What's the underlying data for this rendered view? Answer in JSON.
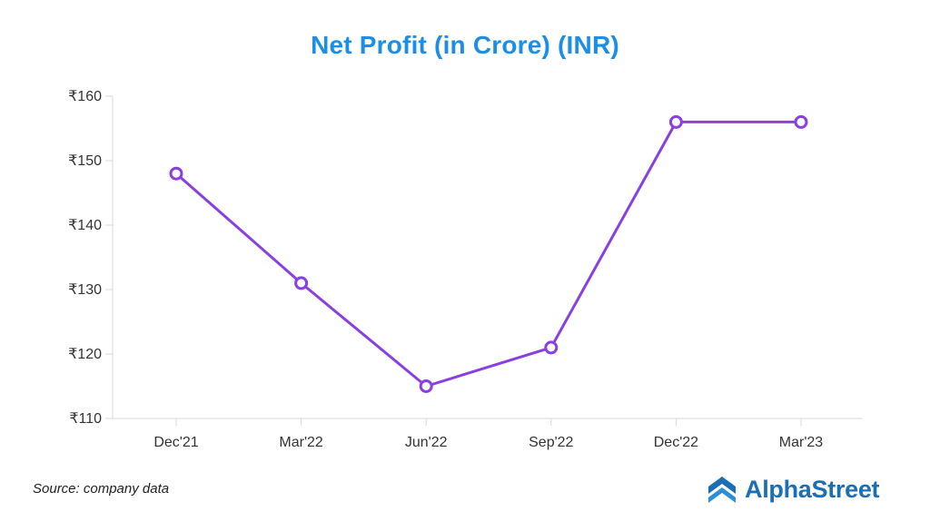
{
  "chart_data": {
    "type": "line",
    "title": "Net Profit (in Crore) (INR)",
    "xlabel": "",
    "ylabel": "",
    "categories": [
      "Dec'21",
      "Mar'22",
      "Jun'22",
      "Sep'22",
      "Dec'22",
      "Mar'23"
    ],
    "series": [
      {
        "values": [
          148,
          131,
          115,
          121,
          156,
          156
        ]
      }
    ],
    "ylim": [
      110,
      160
    ],
    "yticks": [
      110,
      120,
      130,
      140,
      150,
      160
    ],
    "ytick_prefix": "₹",
    "grid": false,
    "legend": "none"
  },
  "colors": {
    "line": "#8a3fe0",
    "title": "#1b8fe6",
    "brand": "#1a6fb5",
    "axis": "#d9d9d9"
  },
  "footer": {
    "source": "Source: company data",
    "brand_name": "AlphaStreet",
    "brand_icon": "alphastreet-logo-icon"
  }
}
